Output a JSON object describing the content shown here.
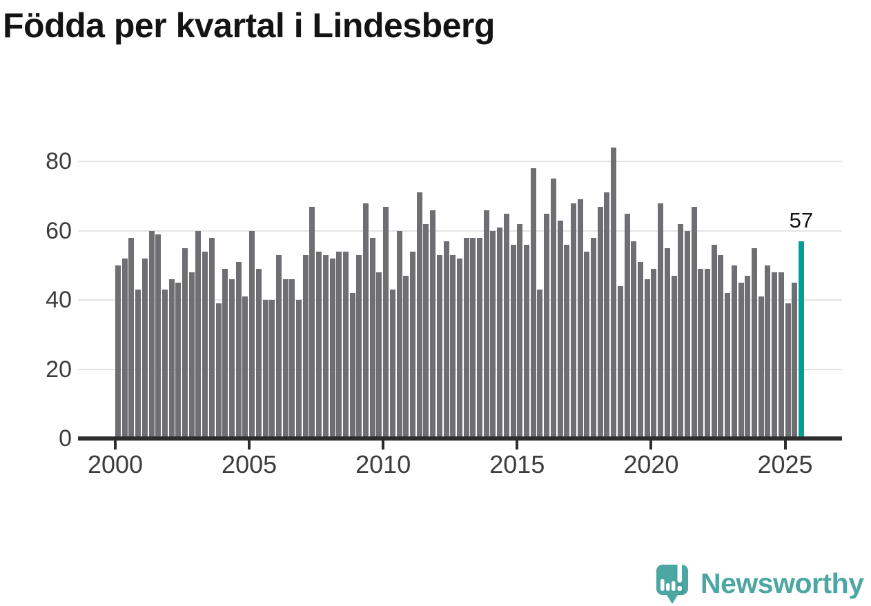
{
  "title": "Födda per kvartal i Lindesberg",
  "annotation": {
    "last_value_label": "57"
  },
  "logo": {
    "text": "Newsworthy"
  },
  "colors": {
    "bar": "#6e6e73",
    "highlight": "#00a09a",
    "grid": "#e4e4e4",
    "axis": "#2d2d2d",
    "tick_text": "#3c3c3c",
    "title_text": "#141414",
    "logo_teal": "#4ca7a2"
  },
  "y_axis": {
    "tick_labels": [
      "0",
      "20",
      "40",
      "60",
      "80"
    ]
  },
  "x_axis": {
    "tick_labels": [
      "2000",
      "2005",
      "2010",
      "2015",
      "2020",
      "2025"
    ]
  },
  "chart_data": {
    "type": "bar",
    "title": "Födda per kvartal i Lindesberg",
    "period": "quarterly",
    "first_period": "2000 Q1",
    "last_period": "2025 Q3",
    "x_tick_labels": [
      "2000",
      "2005",
      "2010",
      "2015",
      "2020",
      "2025"
    ],
    "y_tick_values": [
      0,
      20,
      40,
      60,
      80
    ],
    "ylim": [
      0,
      90
    ],
    "grid": true,
    "legend": false,
    "highlight_last_bar": true,
    "last_value_label": "57",
    "values": [
      50,
      52,
      58,
      43,
      52,
      60,
      59,
      43,
      46,
      45,
      55,
      48,
      60,
      54,
      58,
      39,
      49,
      46,
      51,
      41,
      60,
      49,
      40,
      40,
      53,
      46,
      46,
      40,
      53,
      67,
      54,
      53,
      52,
      54,
      54,
      42,
      53,
      68,
      58,
      48,
      67,
      43,
      60,
      47,
      54,
      71,
      62,
      66,
      53,
      57,
      53,
      52,
      58,
      58,
      58,
      66,
      60,
      61,
      65,
      56,
      62,
      56,
      78,
      43,
      65,
      75,
      63,
      56,
      68,
      69,
      54,
      58,
      67,
      71,
      84,
      44,
      65,
      57,
      51,
      46,
      49,
      68,
      55,
      47,
      62,
      60,
      67,
      49,
      49,
      56,
      53,
      42,
      50,
      45,
      47,
      55,
      41,
      50,
      48,
      48,
      39,
      45,
      57
    ]
  }
}
